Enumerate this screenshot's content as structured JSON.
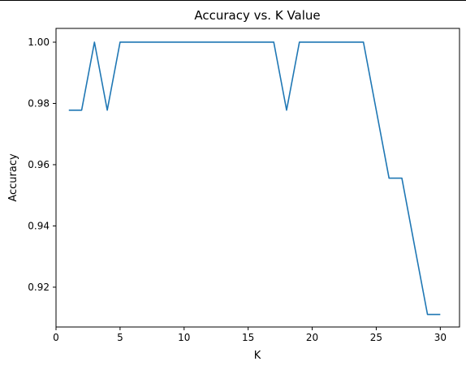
{
  "chart_data": {
    "type": "line",
    "title": "Accuracy vs. K Value",
    "xlabel": "K",
    "ylabel": "Accuracy",
    "xlim": [
      0.0,
      31.5
    ],
    "ylim": [
      0.907,
      1.0045
    ],
    "grid": false,
    "xticks": [
      0,
      5,
      10,
      15,
      20,
      25,
      30
    ],
    "xtick_labels": [
      "0",
      "5",
      "10",
      "15",
      "20",
      "25",
      "30"
    ],
    "yticks": [
      0.92,
      0.94,
      0.96,
      0.98,
      1.0
    ],
    "ytick_labels": [
      "0.92",
      "0.94",
      "0.96",
      "0.98",
      "1.00"
    ],
    "series": [
      {
        "color": "#1f77b4",
        "x": [
          1,
          2,
          3,
          4,
          5,
          6,
          7,
          8,
          9,
          10,
          11,
          12,
          13,
          14,
          15,
          16,
          17,
          18,
          19,
          20,
          21,
          22,
          23,
          24,
          25,
          26,
          27,
          28,
          29,
          30
        ],
        "y": [
          0.9778,
          0.9778,
          1.0,
          0.9778,
          1.0,
          1.0,
          1.0,
          1.0,
          1.0,
          1.0,
          1.0,
          1.0,
          1.0,
          1.0,
          1.0,
          1.0,
          1.0,
          0.9778,
          1.0,
          1.0,
          1.0,
          1.0,
          1.0,
          1.0,
          0.9778,
          0.9556,
          0.9556,
          0.9333,
          0.9111,
          0.9111
        ]
      }
    ]
  }
}
